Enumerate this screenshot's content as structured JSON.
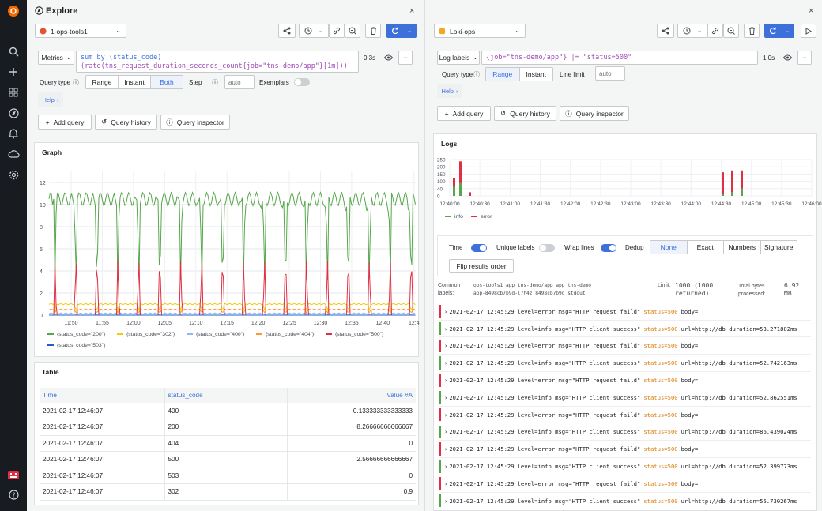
{
  "sidebar": {
    "icons": [
      "grafana-logo-icon",
      "search-icon",
      "plus-icon",
      "dashboards-icon",
      "explore-icon",
      "alerting-icon",
      "cloud-icon",
      "gear-icon",
      "user-icon",
      "help-icon"
    ]
  },
  "left": {
    "title": "Explore",
    "datasource": "1-ops-tools1",
    "query_type_label": "Metrics",
    "query_line1": "sum by (status_code)",
    "query_line2": "(rate(tns_request_duration_seconds_count{job=\"tns-demo/app\"}[1m]))",
    "query_time": "0.3s",
    "query_type": "Query type",
    "range": "Range",
    "instant": "Instant",
    "both": "Both",
    "step": "Step",
    "step_placeholder": "auto",
    "exemplars": "Exemplars",
    "help": "Help",
    "add_query": "Add query",
    "query_history": "Query history",
    "query_inspector": "Query inspector",
    "graph_title": "Graph",
    "table_title": "Table"
  },
  "right": {
    "datasource": "Loki-ops",
    "labels_btn": "Log labels",
    "query": "{job=\"tns-demo/app\"} |= \"status=500\"",
    "query_time": "1.0s",
    "query_type": "Query type",
    "range": "Range",
    "instant": "Instant",
    "line_limit": "Line limit",
    "line_limit_placeholder": "auto",
    "help": "Help",
    "add_query": "Add query",
    "query_history": "Query history",
    "query_inspector": "Query inspector",
    "logs_title": "Logs",
    "opts": {
      "time": "Time",
      "unique": "Unique labels",
      "wrap": "Wrap lines",
      "dedup": "Dedup"
    },
    "dedup_modes": [
      "None",
      "Exact",
      "Numbers",
      "Signature"
    ],
    "flip": "Flip results order",
    "common_labels_key": "Common labels:",
    "common_labels_l1": "ops-tools1  app  tns-demo/app  app  tns-demo",
    "common_labels_l2": "app-8498cb7b9d-l7h4z  8498cb7b9d  stdout",
    "limit_key": "Limit:",
    "limit_val": "1000 (1000 returned)",
    "bytes_key": "Total bytes processed:",
    "bytes_val": "6.92 MB",
    "legend": [
      {
        "name": "info",
        "color": "#56a64b"
      },
      {
        "name": "error",
        "color": "#e02f44"
      }
    ],
    "log_lines": [
      {
        "level": "error",
        "ts": "2021-02-17 12:45:29",
        "pre": "level=error msg=\"HTTP request faild\"",
        "status": "status=500",
        "post": "body="
      },
      {
        "level": "info",
        "ts": "2021-02-17 12:45:29",
        "pre": "level=info msg=\"HTTP client success\"",
        "status": "status=500",
        "post": "url=http://db duration=53.271802ms"
      },
      {
        "level": "error",
        "ts": "2021-02-17 12:45:29",
        "pre": "level=error msg=\"HTTP request faild\"",
        "status": "status=500",
        "post": "body="
      },
      {
        "level": "info",
        "ts": "2021-02-17 12:45:29",
        "pre": "level=info msg=\"HTTP client success\"",
        "status": "status=500",
        "post": "url=http://db duration=52.742163ms"
      },
      {
        "level": "error",
        "ts": "2021-02-17 12:45:29",
        "pre": "level=error msg=\"HTTP request faild\"",
        "status": "status=500",
        "post": "body="
      },
      {
        "level": "info",
        "ts": "2021-02-17 12:45:29",
        "pre": "level=info msg=\"HTTP client success\"",
        "status": "status=500",
        "post": "url=http://db duration=52.862551ms"
      },
      {
        "level": "error",
        "ts": "2021-02-17 12:45:29",
        "pre": "level=error msg=\"HTTP request faild\"",
        "status": "status=500",
        "post": "body="
      },
      {
        "level": "info",
        "ts": "2021-02-17 12:45:29",
        "pre": "level=info msg=\"HTTP client success\"",
        "status": "status=500",
        "post": "url=http://db duration=86.439024ms"
      },
      {
        "level": "error",
        "ts": "2021-02-17 12:45:29",
        "pre": "level=error msg=\"HTTP request faild\"",
        "status": "status=500",
        "post": "body="
      },
      {
        "level": "info",
        "ts": "2021-02-17 12:45:29",
        "pre": "level=info msg=\"HTTP client success\"",
        "status": "status=500",
        "post": "url=http://db duration=52.399773ms"
      },
      {
        "level": "error",
        "ts": "2021-02-17 12:45:29",
        "pre": "level=error msg=\"HTTP request faild\"",
        "status": "status=500",
        "post": "body="
      },
      {
        "level": "info",
        "ts": "2021-02-17 12:45:29",
        "pre": "level=info msg=\"HTTP client success\"",
        "status": "status=500",
        "post": "url=http://db duration=55.730267ms"
      }
    ]
  },
  "table": {
    "headers": [
      "Time",
      "status_code",
      "Value #A"
    ],
    "rows": [
      [
        "2021-02-17 12:46:07",
        "400",
        "0.133333333333333"
      ],
      [
        "2021-02-17 12:46:07",
        "200",
        "8.26666666666667"
      ],
      [
        "2021-02-17 12:46:07",
        "404",
        "0"
      ],
      [
        "2021-02-17 12:46:07",
        "500",
        "2.56666666666667"
      ],
      [
        "2021-02-17 12:46:07",
        "503",
        "0"
      ],
      [
        "2021-02-17 12:46:07",
        "302",
        "0.9"
      ]
    ]
  },
  "chart_data": [
    {
      "type": "line",
      "title": "Graph",
      "x": [
        "11:50",
        "11:55",
        "12:00",
        "12:05",
        "12:10",
        "12:15",
        "12:20",
        "12:25",
        "12:30",
        "12:35",
        "12:40",
        "12:4"
      ],
      "yticks": [
        "0",
        "2",
        "4",
        "6",
        "8",
        "10",
        "12"
      ],
      "ylim": [
        0,
        13
      ],
      "legend_placement": "bottom",
      "series": [
        {
          "name": "{status_code=\"200\"}",
          "color": "#56a64b",
          "base": 10.5,
          "dip": 2.2
        },
        {
          "name": "{status_code=\"302\"}",
          "color": "#f2cc0c",
          "base": 1.0,
          "dip": 0.6
        },
        {
          "name": "{status_code=\"400\"}",
          "color": "#8ab8ff",
          "base": 0.15,
          "dip": 0.1
        },
        {
          "name": "{status_code=\"404\"}",
          "color": "#ff9830",
          "base": 0.5,
          "dip": 0.3
        },
        {
          "name": "{status_code=\"500\"}",
          "color": "#e02f44",
          "base": 0,
          "dip": 5
        },
        {
          "name": "{status_code=\"503\"}",
          "color": "#1f60c4",
          "base": 0,
          "dip": 0
        }
      ]
    },
    {
      "type": "bar",
      "title": "Logs",
      "x": [
        "12:40:00",
        "12:40:30",
        "12:41:00",
        "12:41:30",
        "12:42:00",
        "12:42:30",
        "12:43:00",
        "12:43:30",
        "12:44:00",
        "12:44:30",
        "12:45:00",
        "12:45:30",
        "12:46:00"
      ],
      "yticks": [
        "0",
        "40",
        "100",
        "150",
        "200",
        "250"
      ],
      "series": [
        {
          "name": "info"
        },
        {
          "name": "error"
        }
      ]
    }
  ]
}
